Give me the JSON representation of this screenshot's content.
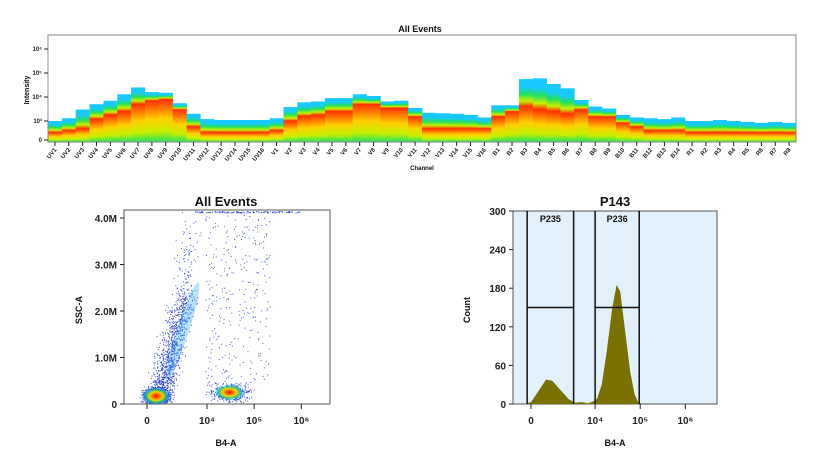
{
  "chart_data": [
    {
      "type": "heatmap",
      "title": "All Events",
      "xlabel": "Channel",
      "ylabel": "Intensity",
      "y_scale": "biexponential",
      "y_ticks": [
        "0",
        "10³",
        "10⁴",
        "10⁵",
        "10⁶"
      ],
      "y_tick_values": [
        0,
        1000,
        10000,
        100000,
        1000000
      ],
      "colormap": [
        "#1e5cff",
        "#18c8ff",
        "#22e060",
        "#c8f000",
        "#ffd000",
        "#ff3000"
      ],
      "channels": [
        "UV1",
        "UV2",
        "UV3",
        "UV4",
        "UV5",
        "UV6",
        "UV7",
        "UV8",
        "UV9",
        "UV10",
        "UV11",
        "UV12",
        "UV13",
        "UV14",
        "UV15",
        "UV16",
        "V1",
        "V2",
        "V3",
        "V4",
        "V5",
        "V6",
        "V7",
        "V8",
        "V9",
        "V10",
        "V11",
        "V12",
        "V13",
        "V14",
        "V15",
        "V16",
        "B1",
        "B2",
        "B3",
        "B4",
        "B5",
        "B6",
        "B7",
        "B8",
        "B9",
        "B10",
        "B11",
        "B12",
        "B13",
        "B14",
        "R1",
        "R2",
        "R3",
        "R4",
        "R5",
        "R6",
        "R7",
        "R8"
      ],
      "max_intensity": [
        1000,
        1300,
        3000,
        5000,
        7000,
        13000,
        25000,
        16000,
        15000,
        5500,
        2000,
        1200,
        1100,
        1100,
        1100,
        1100,
        1300,
        3800,
        6000,
        6500,
        9000,
        9000,
        13000,
        11000,
        6500,
        7000,
        3500,
        2200,
        2100,
        2000,
        1800,
        1400,
        4500,
        4500,
        56000,
        60000,
        35000,
        23000,
        7500,
        4000,
        3300,
        1800,
        1400,
        1300,
        1200,
        1400,
        1000,
        1000,
        1100,
        1000,
        950,
        900,
        950,
        900
      ],
      "peak_intensity": [
        400,
        500,
        600,
        1200,
        1800,
        2500,
        5000,
        7000,
        8000,
        3000,
        700,
        400,
        400,
        400,
        400,
        400,
        500,
        1000,
        1600,
        1800,
        2500,
        2500,
        5000,
        5000,
        3500,
        3500,
        1500,
        600,
        600,
        600,
        600,
        600,
        1500,
        2500,
        4000,
        3000,
        2500,
        2000,
        3000,
        1500,
        1500,
        900,
        700,
        500,
        500,
        500,
        400,
        400,
        400,
        400,
        400,
        400,
        400,
        400
      ]
    },
    {
      "type": "scatter",
      "title": "All Events",
      "xlabel": "B4-A",
      "ylabel": "SSC-A",
      "x_scale": "biexponential",
      "x_ticks": [
        "0",
        "10⁴",
        "10⁵",
        "10⁶"
      ],
      "x_tick_values": [
        0,
        10000,
        100000,
        1000000
      ],
      "y_ticks": [
        "0",
        "1.0M",
        "2.0M",
        "3.0M",
        "4.0M"
      ],
      "y_tick_values": [
        0,
        1000000,
        2000000,
        3000000,
        4000000
      ],
      "ylim": [
        0,
        4200000
      ],
      "populations": [
        {
          "center_x": 500,
          "center_y": 170000
        },
        {
          "center_x": 30000,
          "center_y": 250000
        },
        {
          "streak_from_x": 800,
          "streak_from_y": 300000,
          "streak_to_x": 4000,
          "streak_to_y": 2600000
        }
      ],
      "point_color": "#1a2fd0"
    },
    {
      "type": "area",
      "title": "P143",
      "xlabel": "B4-A",
      "ylabel": "Count",
      "x_scale": "biexponential",
      "x_ticks": [
        "0",
        "10⁴",
        "10⁵",
        "10⁶"
      ],
      "x_tick_values": [
        0,
        10000,
        100000,
        1000000
      ],
      "y_ticks": [
        "0",
        "60",
        "120",
        "180",
        "240",
        "300"
      ],
      "y_tick_values": [
        0,
        60,
        120,
        180,
        240,
        300
      ],
      "ylim": [
        0,
        300
      ],
      "fill_color": "#7a7200",
      "background_color": "#e2f0fb",
      "x": [
        -300,
        0,
        300,
        640,
        1000,
        1600,
        2500,
        3500,
        5000,
        7000,
        9000,
        11000,
        14000,
        18000,
        24000,
        30000,
        36000,
        45000,
        60000,
        75000,
        90000,
        110000
      ],
      "y": [
        0,
        3,
        20,
        38,
        36,
        22,
        8,
        2,
        3,
        1,
        4,
        8,
        30,
        80,
        150,
        185,
        175,
        120,
        50,
        15,
        3,
        0
      ],
      "gates": [
        {
          "name": "P235",
          "x_min": -150,
          "x_max": 3300,
          "level": 150
        },
        {
          "name": "P236",
          "x_min": 10000,
          "x_max": 95000,
          "level": 150
        }
      ]
    }
  ]
}
